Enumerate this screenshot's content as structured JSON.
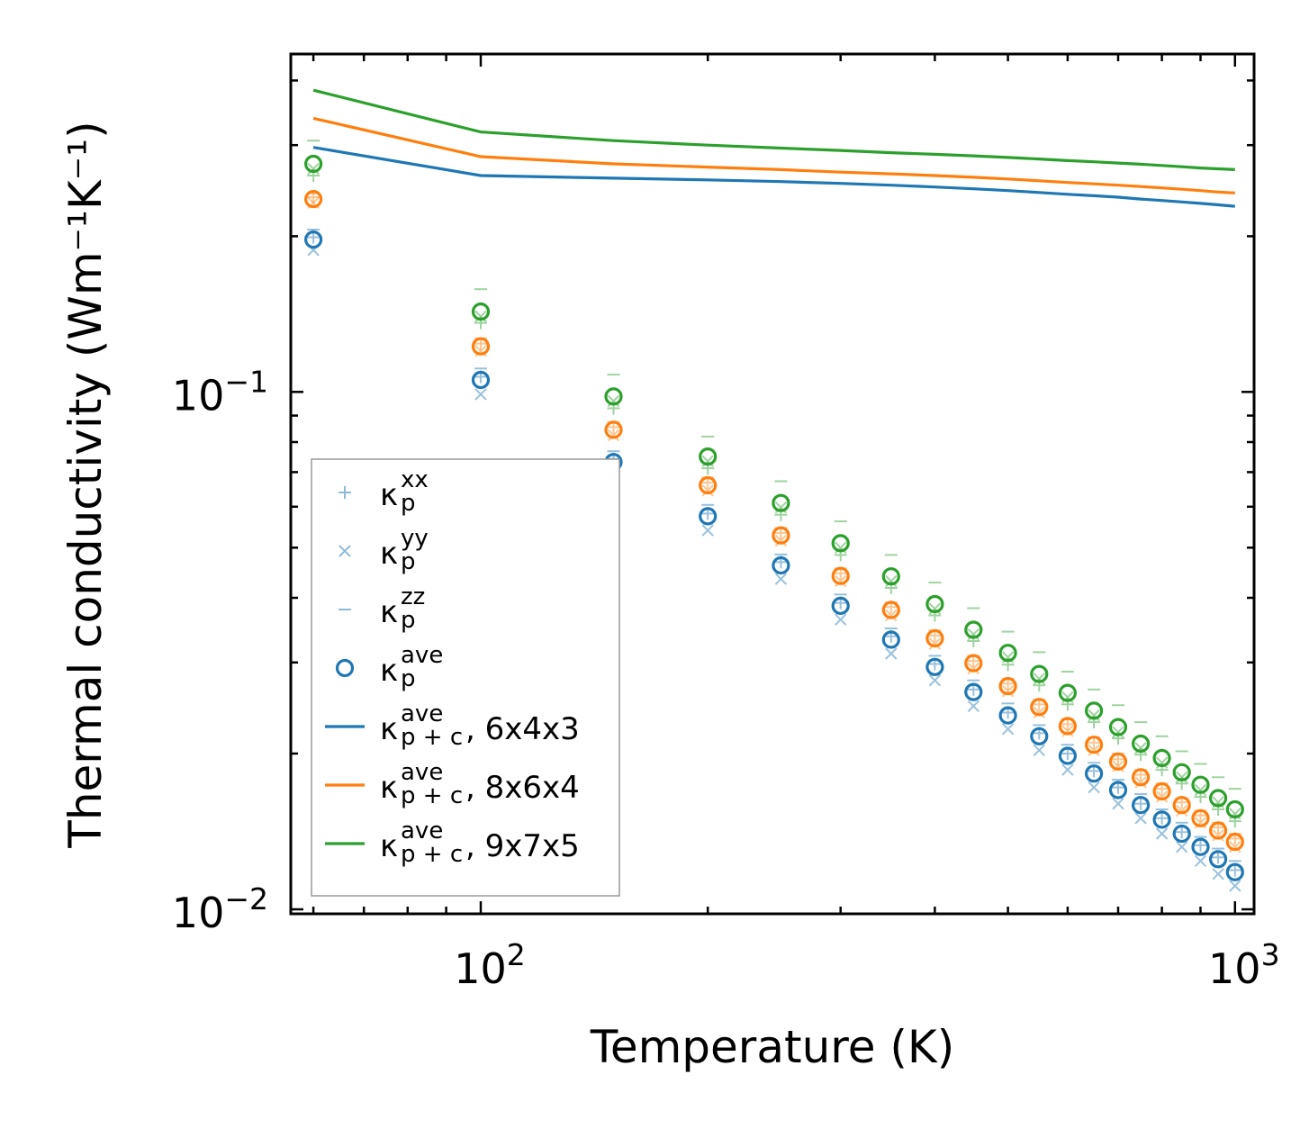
{
  "chart_data": {
    "type": "scatter",
    "title": "",
    "xlabel": "Temperature (K)",
    "ylabel": "Thermal conductivity (Wm⁻¹K⁻¹)",
    "xscale": "log",
    "yscale": "log",
    "xlim": [
      56,
      1060
    ],
    "ylim": [
      0.0098,
      0.45
    ],
    "x_ticks": [
      {
        "value": 100,
        "base": "10",
        "exp": "2"
      },
      {
        "value": 1000,
        "base": "10",
        "exp": "3"
      }
    ],
    "y_ticks": [
      {
        "value": 0.01,
        "base": "10",
        "exp": "−2"
      },
      {
        "value": 0.1,
        "base": "10",
        "exp": "−1"
      }
    ],
    "temperatures": [
      60,
      100,
      150,
      200,
      250,
      300,
      350,
      400,
      450,
      500,
      550,
      600,
      650,
      700,
      750,
      800,
      850,
      900,
      950,
      1000
    ],
    "colors": {
      "6x4x3": "#1f77b4",
      "8x6x4": "#ff7f0e",
      "9x7x5": "#2ca02c"
    },
    "series": [
      {
        "name": "6x4x3",
        "color": "#1f77b4",
        "kappa_p_ave": [
          0.197,
          0.1055,
          0.0732,
          0.0575,
          0.0462,
          0.0386,
          0.0332,
          0.0294,
          0.0263,
          0.0237,
          0.0216,
          0.0198,
          0.0183,
          0.017,
          0.0159,
          0.0149,
          0.014,
          0.0132,
          0.0125,
          0.0118
        ],
        "kappa_p_xx": [
          0.199,
          0.107,
          0.0742,
          0.0582,
          0.0469,
          0.0391,
          0.0337,
          0.0298,
          0.0266,
          0.024,
          0.0219,
          0.02,
          0.0185,
          0.0172,
          0.016,
          0.015,
          0.0141,
          0.0133,
          0.0126,
          0.0119
        ],
        "kappa_p_yy": [
          0.188,
          0.099,
          0.069,
          0.054,
          0.0435,
          0.0363,
          0.0312,
          0.0277,
          0.0247,
          0.0223,
          0.0203,
          0.0186,
          0.0172,
          0.016,
          0.015,
          0.014,
          0.0132,
          0.0124,
          0.0117,
          0.0111
        ],
        "kappa_p_zz": [
          0.206,
          0.111,
          0.0768,
          0.0605,
          0.0485,
          0.0406,
          0.0349,
          0.0309,
          0.0277,
          0.025,
          0.0227,
          0.0208,
          0.0192,
          0.0178,
          0.0167,
          0.0156,
          0.0147,
          0.0138,
          0.0131,
          0.0124
        ],
        "kappa_pc_ave": [
          0.297,
          0.262,
          0.259,
          0.257,
          0.255,
          0.253,
          0.251,
          0.249,
          0.247,
          0.245,
          0.243,
          0.241,
          0.2395,
          0.238,
          0.236,
          0.2345,
          0.233,
          0.2315,
          0.23,
          0.2285
        ]
      },
      {
        "name": "8x6x4",
        "color": "#ff7f0e",
        "kappa_p_ave": [
          0.236,
          0.1225,
          0.0845,
          0.066,
          0.0528,
          0.0441,
          0.0379,
          0.0334,
          0.0299,
          0.027,
          0.0246,
          0.0226,
          0.0208,
          0.0193,
          0.018,
          0.0169,
          0.0159,
          0.015,
          0.0142,
          0.0135
        ],
        "kappa_p_xx": [
          0.238,
          0.124,
          0.0855,
          0.0668,
          0.0534,
          0.0446,
          0.0384,
          0.0338,
          0.0302,
          0.0273,
          0.0249,
          0.0228,
          0.021,
          0.0195,
          0.0182,
          0.0171,
          0.0161,
          0.0152,
          0.0144,
          0.0137
        ],
        "kappa_p_yy": [
          0.232,
          0.12,
          0.0825,
          0.0645,
          0.0516,
          0.0431,
          0.037,
          0.0326,
          0.0292,
          0.0264,
          0.024,
          0.0221,
          0.0203,
          0.0189,
          0.0176,
          0.0165,
          0.0155,
          0.0147,
          0.0139,
          0.0132
        ],
        "kappa_p_zz": [
          0.242,
          0.127,
          0.0875,
          0.0683,
          0.0546,
          0.0456,
          0.0392,
          0.0346,
          0.0309,
          0.0279,
          0.0254,
          0.0233,
          0.0215,
          0.02,
          0.0186,
          0.0175,
          0.0164,
          0.0155,
          0.0147,
          0.014
        ],
        "kappa_pc_ave": [
          0.338,
          0.285,
          0.276,
          0.272,
          0.269,
          0.266,
          0.264,
          0.262,
          0.26,
          0.258,
          0.256,
          0.254,
          0.2525,
          0.251,
          0.2495,
          0.248,
          0.2465,
          0.245,
          0.2435,
          0.2425
        ]
      },
      {
        "name": "9x7x5",
        "color": "#2ca02c",
        "kappa_p_ave": [
          0.276,
          0.143,
          0.098,
          0.075,
          0.061,
          0.051,
          0.044,
          0.0389,
          0.0347,
          0.0313,
          0.0285,
          0.0262,
          0.0242,
          0.0225,
          0.0209,
          0.0196,
          0.0184,
          0.0174,
          0.0164,
          0.0156
        ],
        "kappa_p_xx": [
          0.262,
          0.136,
          0.093,
          0.0712,
          0.0579,
          0.0484,
          0.0418,
          0.037,
          0.033,
          0.0297,
          0.0271,
          0.0249,
          0.023,
          0.0214,
          0.0199,
          0.0186,
          0.0175,
          0.0165,
          0.0156,
          0.0148
        ],
        "kappa_p_yy": [
          0.27,
          0.14,
          0.096,
          0.0735,
          0.0598,
          0.05,
          0.0431,
          0.0381,
          0.034,
          0.0307,
          0.0279,
          0.0257,
          0.0237,
          0.022,
          0.0205,
          0.0192,
          0.018,
          0.017,
          0.0161,
          0.0153
        ],
        "kappa_p_zz": [
          0.306,
          0.158,
          0.108,
          0.082,
          0.0672,
          0.0562,
          0.0484,
          0.0428,
          0.0382,
          0.0344,
          0.0314,
          0.0288,
          0.0266,
          0.0248,
          0.023,
          0.0216,
          0.0202,
          0.0191,
          0.018,
          0.0171
        ],
        "kappa_pc_ave": [
          0.383,
          0.318,
          0.306,
          0.3,
          0.296,
          0.293,
          0.29,
          0.288,
          0.286,
          0.284,
          0.282,
          0.28,
          0.2785,
          0.277,
          0.2755,
          0.274,
          0.2725,
          0.271,
          0.27,
          0.269
        ]
      }
    ],
    "legend": {
      "placement": "lower-left",
      "entries": [
        {
          "marker": "plus",
          "color": "#1f77b4",
          "kappa": "κ",
          "sub": "p",
          "sup": "xx",
          "suffix": ""
        },
        {
          "marker": "x",
          "color": "#1f77b4",
          "kappa": "κ",
          "sub": "p",
          "sup": "yy",
          "suffix": ""
        },
        {
          "marker": "hline",
          "color": "#1f77b4",
          "kappa": "κ",
          "sub": "p",
          "sup": "zz",
          "suffix": ""
        },
        {
          "marker": "circle",
          "color": "#1f77b4",
          "kappa": "κ",
          "sub": "p",
          "sup": "ave",
          "suffix": ""
        },
        {
          "marker": "line",
          "color": "#1f77b4",
          "kappa": "κ",
          "sub": "p + c",
          "sup": "ave",
          "suffix": ", 6x4x3"
        },
        {
          "marker": "line",
          "color": "#ff7f0e",
          "kappa": "κ",
          "sub": "p + c",
          "sup": "ave",
          "suffix": ", 8x6x4"
        },
        {
          "marker": "line",
          "color": "#2ca02c",
          "kappa": "κ",
          "sub": "p + c",
          "sup": "ave",
          "suffix": ", 9x7x5"
        }
      ]
    }
  }
}
